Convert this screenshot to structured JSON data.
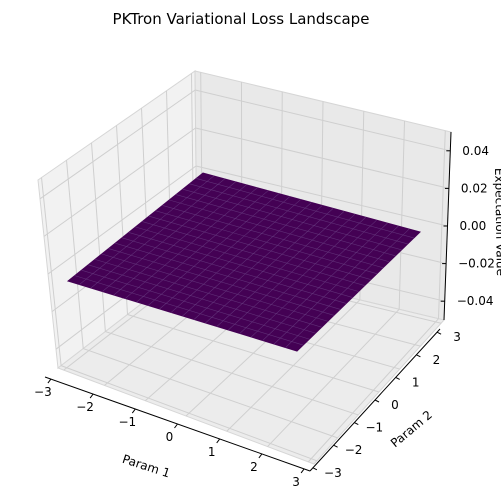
{
  "chart_data": {
    "type": "surface",
    "title": "PKTron Variational Loss Landscape",
    "xlabel": "Param 1",
    "ylabel": "Param 2",
    "zlabel": "Expectation Value",
    "x_ticks": [
      "−3",
      "−2",
      "−1",
      "0",
      "1",
      "2",
      "3"
    ],
    "y_ticks": [
      "−3",
      "−2",
      "−1",
      "0",
      "1",
      "2",
      "3"
    ],
    "z_ticks": [
      "−0.04",
      "−0.02",
      "0.00",
      "0.02",
      "0.04"
    ],
    "xlim": [
      -3.14,
      3.14
    ],
    "ylim": [
      -3.14,
      3.14
    ],
    "zlim": [
      -0.05,
      0.05
    ],
    "surface": {
      "z_value": 0.0,
      "color": "#440154",
      "grid_lines": 20
    },
    "colormap": "viridis",
    "grid": true
  }
}
